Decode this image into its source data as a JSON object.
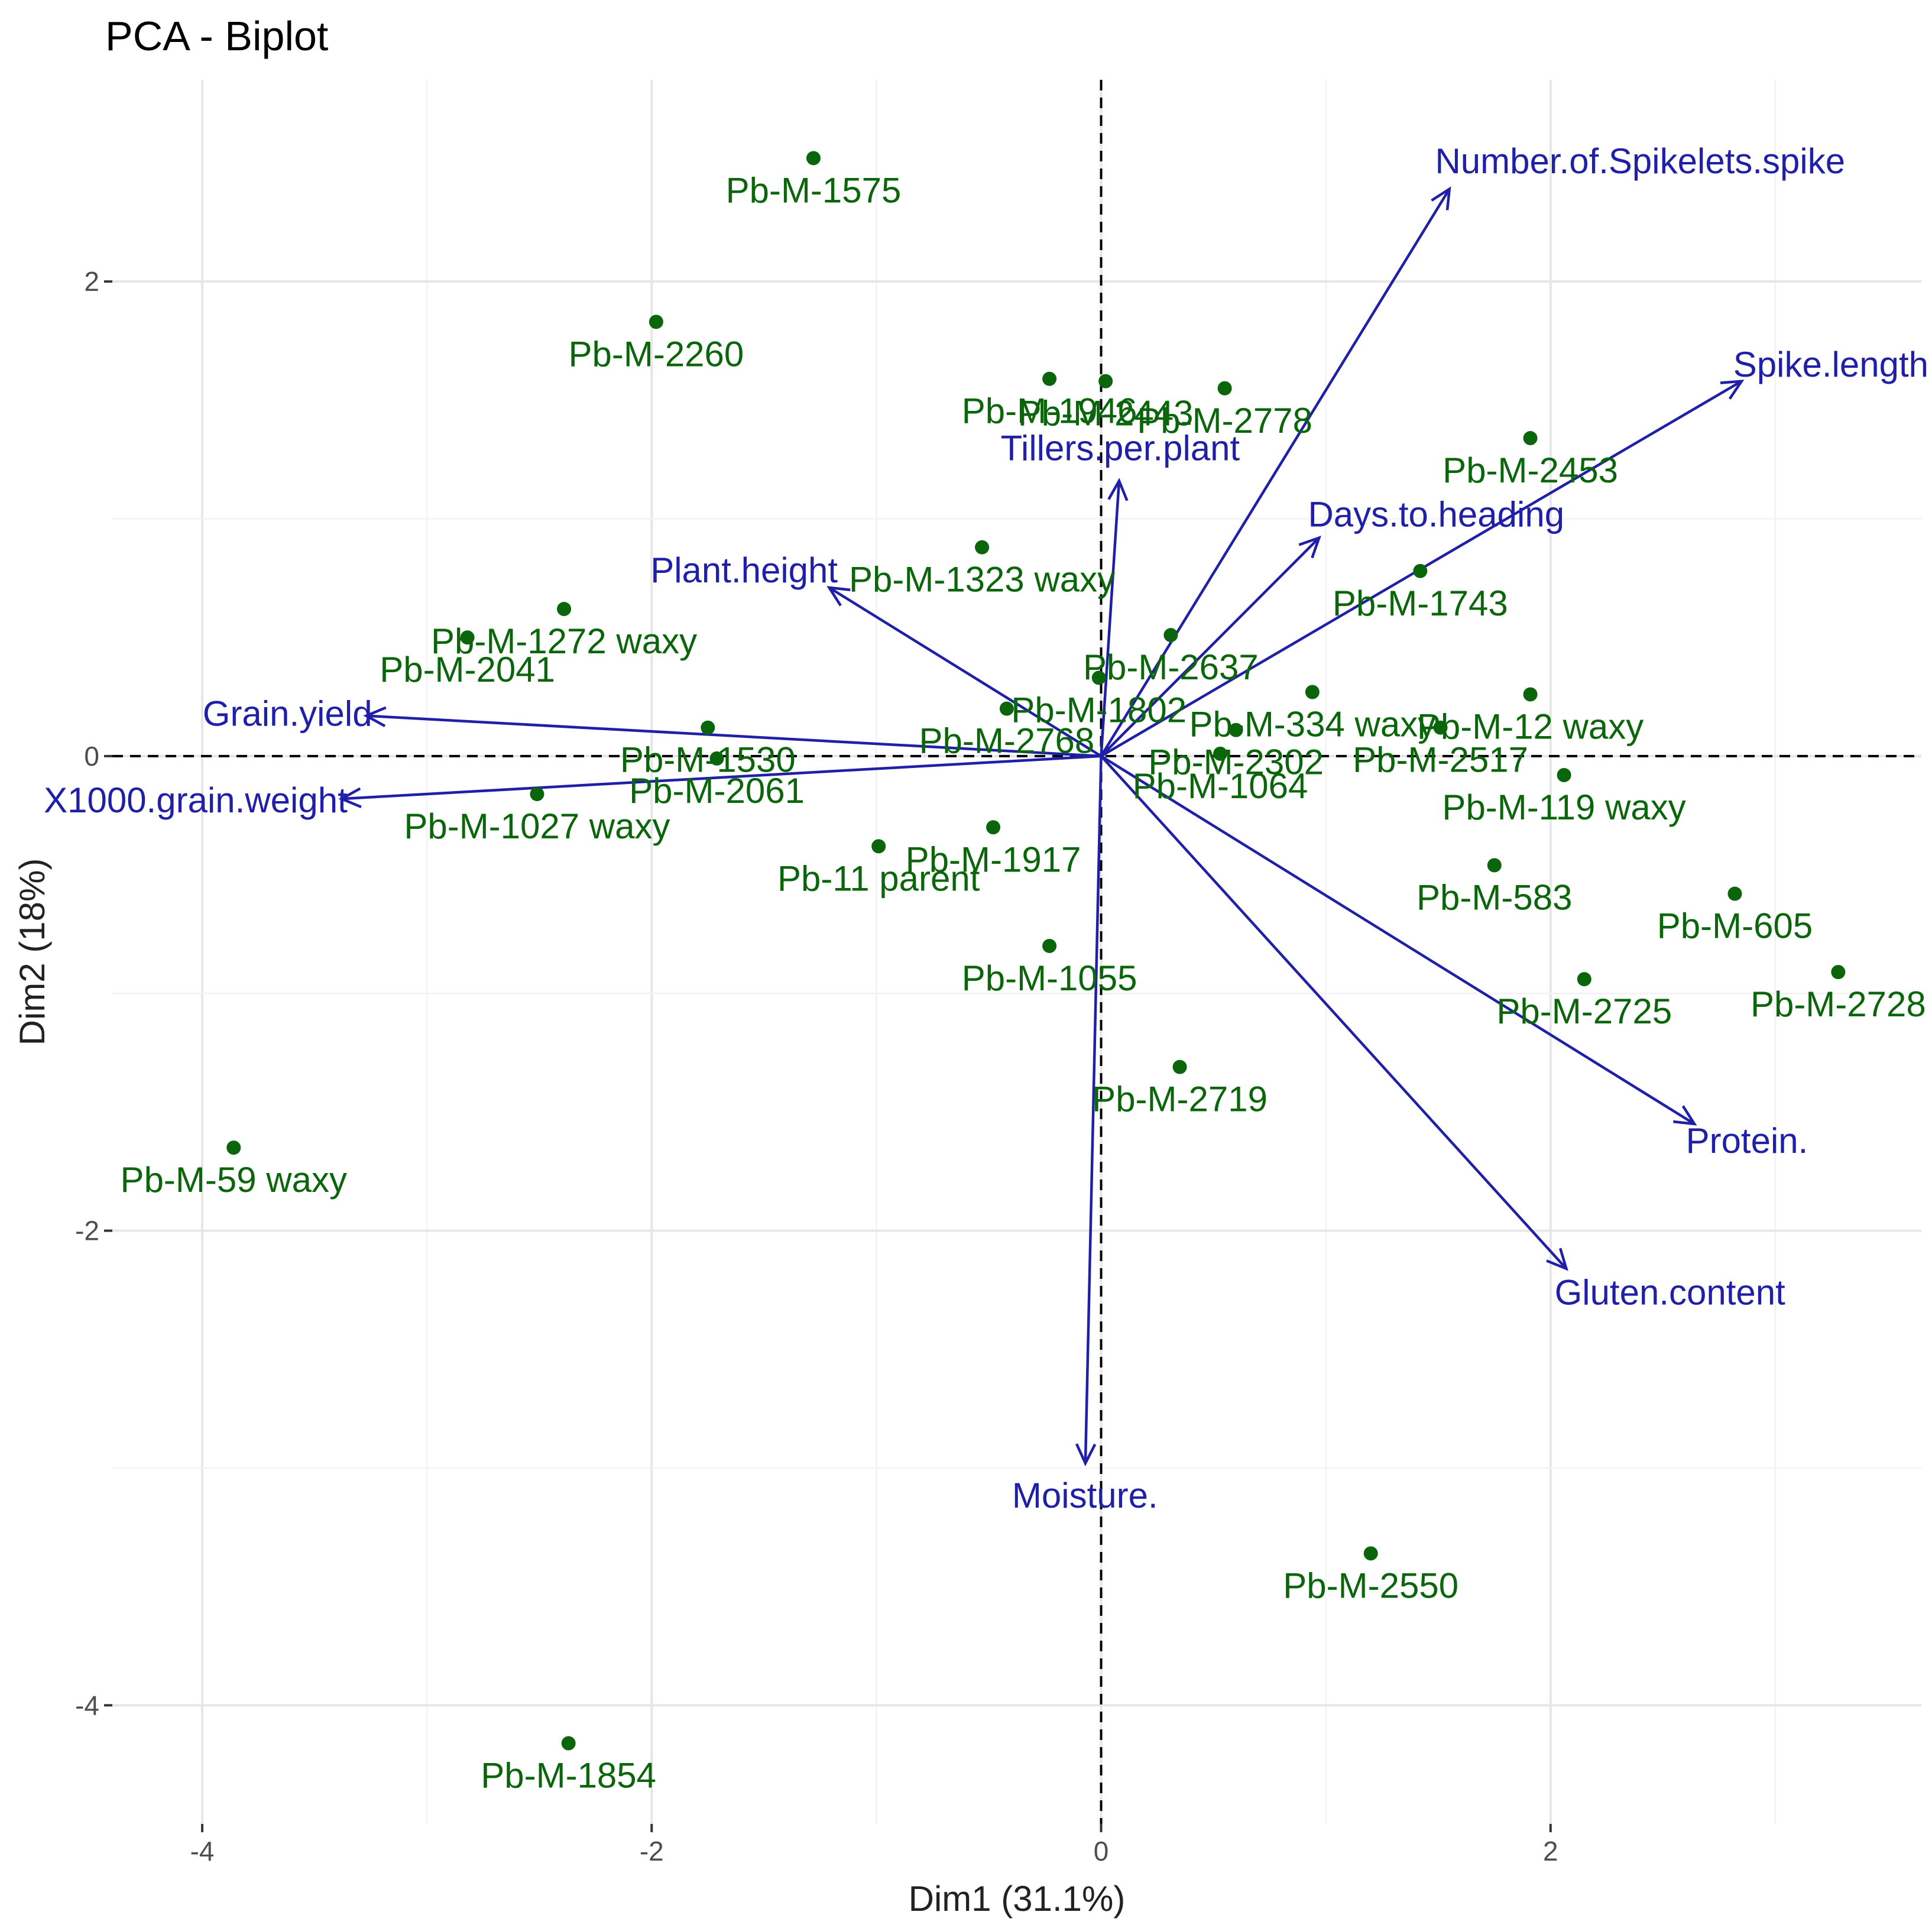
{
  "chart_data": {
    "type": "scatter",
    "title": "PCA - Biplot",
    "xlabel": "Dim1 (31.1%)",
    "ylabel": "Dim2 (18%)",
    "xlim": [
      -4.4,
      3.65
    ],
    "ylim": [
      -4.5,
      2.85
    ],
    "x_ticks": [
      -4,
      -2,
      0,
      2
    ],
    "y_ticks": [
      -4,
      -2,
      0,
      2
    ],
    "x_tick_labels": [
      "-4",
      "-2",
      "0",
      "2"
    ],
    "y_tick_labels": [
      "-4",
      "-2",
      "0",
      "2"
    ],
    "grid": true,
    "colors": {
      "points": "#0b660b",
      "variables": "#1f1fa8",
      "grid": "#e6e6e6"
    },
    "individuals": [
      {
        "name": "Pb-M-1575",
        "x": -1.28,
        "y": 2.52
      },
      {
        "name": "Pb-M-2260",
        "x": -1.98,
        "y": 1.83
      },
      {
        "name": "Pb-M-1946",
        "x": -0.23,
        "y": 1.59
      },
      {
        "name": "Pb-M-2443",
        "x": 0.02,
        "y": 1.58
      },
      {
        "name": "Pb-M-2778",
        "x": 0.55,
        "y": 1.55
      },
      {
        "name": "Pb-M-2453",
        "x": 1.91,
        "y": 1.34
      },
      {
        "name": "Pb-M-1323 waxy",
        "x": -0.53,
        "y": 0.88
      },
      {
        "name": "Pb-M-1743",
        "x": 1.42,
        "y": 0.78
      },
      {
        "name": "Pb-M-1272 waxy",
        "x": -2.39,
        "y": 0.62
      },
      {
        "name": "Pb-M-2041",
        "x": -2.82,
        "y": 0.5
      },
      {
        "name": "Pb-M-2637",
        "x": 0.31,
        "y": 0.51
      },
      {
        "name": "Pb-M-1802",
        "x": -0.01,
        "y": 0.33
      },
      {
        "name": "Pb-M-334 waxy",
        "x": 0.94,
        "y": 0.27
      },
      {
        "name": "Pb-M-12 waxy",
        "x": 1.91,
        "y": 0.26
      },
      {
        "name": "Pb-M-2302",
        "x": 0.6,
        "y": 0.11
      },
      {
        "name": "Pb-M-1530",
        "x": -1.75,
        "y": 0.12
      },
      {
        "name": "Pb-M-2768",
        "x": -0.42,
        "y": 0.2
      },
      {
        "name": "Pb-M-2517",
        "x": 1.51,
        "y": 0.12
      },
      {
        "name": "Pb-M-1064",
        "x": 0.53,
        "y": 0.01
      },
      {
        "name": "Pb-M-2061",
        "x": -1.71,
        "y": -0.01
      },
      {
        "name": "Pb-M-119 waxy",
        "x": 2.06,
        "y": -0.08
      },
      {
        "name": "Pb-M-1027 waxy",
        "x": -2.51,
        "y": -0.16
      },
      {
        "name": "Pb-M-1917",
        "x": -0.48,
        "y": -0.3
      },
      {
        "name": "Pb-11 parent",
        "x": -0.99,
        "y": -0.38
      },
      {
        "name": "Pb-M-583",
        "x": 1.75,
        "y": -0.46
      },
      {
        "name": "Pb-M-605",
        "x": 2.82,
        "y": -0.58
      },
      {
        "name": "Pb-M-1055",
        "x": -0.23,
        "y": -0.8
      },
      {
        "name": "Pb-M-2728",
        "x": 3.28,
        "y": -0.91
      },
      {
        "name": "Pb-M-2725",
        "x": 2.15,
        "y": -0.94
      },
      {
        "name": "Pb-M-2719",
        "x": 0.35,
        "y": -1.31
      },
      {
        "name": "Pb-M-59 waxy",
        "x": -3.86,
        "y": -1.65
      },
      {
        "name": "Pb-M-2550",
        "x": 1.2,
        "y": -3.36
      },
      {
        "name": "Pb-M-1854",
        "x": -2.37,
        "y": -4.16
      }
    ],
    "variables": [
      {
        "name": "Number.of.Spikelets.spike",
        "x": 1.55,
        "y": 2.39
      },
      {
        "name": "Spike.length",
        "x": 2.85,
        "y": 1.58
      },
      {
        "name": "Tillers.per.plant",
        "x": 0.08,
        "y": 1.16
      },
      {
        "name": "Days.to.heading",
        "x": 0.97,
        "y": 0.92
      },
      {
        "name": "Plant.height",
        "x": -1.21,
        "y": 0.71
      },
      {
        "name": "Grain.yield",
        "x": -3.27,
        "y": 0.17
      },
      {
        "name": "X1000.grain.weight",
        "x": -3.38,
        "y": -0.18
      },
      {
        "name": "Protein.",
        "x": 2.64,
        "y": -1.55
      },
      {
        "name": "Gluten.content",
        "x": 2.07,
        "y": -2.16
      },
      {
        "name": "Moisture.",
        "x": -0.07,
        "y": -2.98
      }
    ]
  }
}
